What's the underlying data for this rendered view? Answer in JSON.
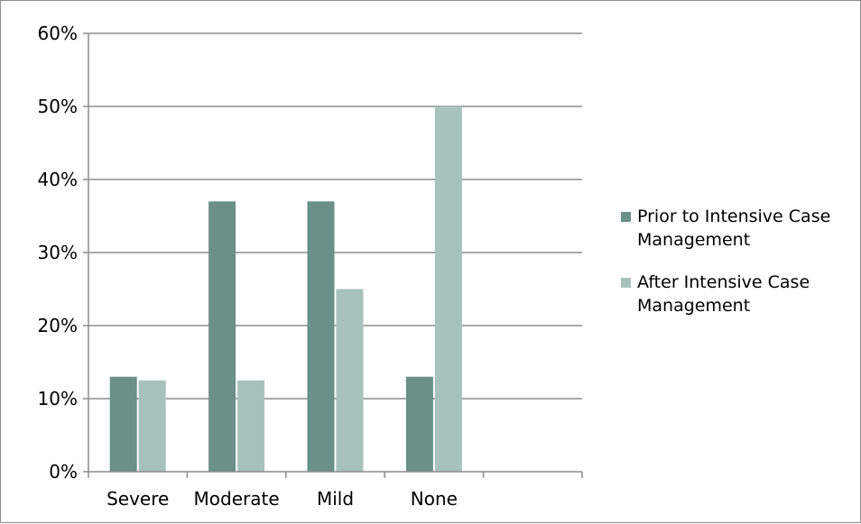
{
  "chart_data": {
    "type": "bar",
    "categories": [
      "Severe",
      "Moderate",
      "Mild",
      "None",
      ""
    ],
    "series": [
      {
        "name": "Prior to Intensive Case Management",
        "values": [
          13,
          37,
          37,
          13,
          null
        ],
        "color": "#6a9087"
      },
      {
        "name": "After Intensive Case Management",
        "values": [
          12.5,
          12.5,
          25,
          50,
          null
        ],
        "color": "#a7c2ba"
      }
    ],
    "ylim": [
      0,
      60
    ],
    "yticks": [
      0,
      10,
      20,
      30,
      40,
      50,
      60
    ],
    "ytick_labels": [
      "0%",
      "10%",
      "20%",
      "30%",
      "40%",
      "50%",
      "60%"
    ],
    "grid": true,
    "legend_position": "right",
    "legend_lines": [
      [
        "Prior to Intensive Case",
        "Management"
      ],
      [
        "After Intensive Case",
        "Management"
      ]
    ],
    "title": "",
    "xlabel": "",
    "ylabel": ""
  }
}
